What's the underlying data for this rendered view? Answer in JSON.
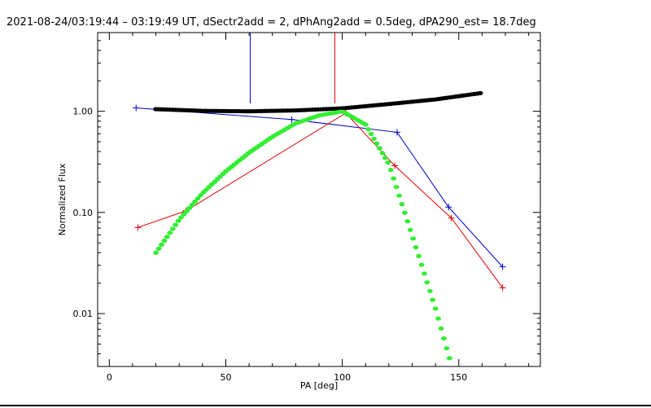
{
  "chart_data": {
    "type": "line",
    "title": "2021-08-24/03:19:44 – 03:19:49 UT, dSectr2add = 2, dPhAng2add = 0.5deg, dPA290_est= 18.7deg",
    "xlabel": "PA [deg]",
    "ylabel": "Normalized Flux",
    "xlim": [
      -5,
      185
    ],
    "ylim": [
      0.003,
      6.0
    ],
    "yscale": "log",
    "xticks": [
      {
        "value": 0,
        "label": "0"
      },
      {
        "value": 50,
        "label": "50"
      },
      {
        "value": 100,
        "label": "100"
      },
      {
        "value": 150,
        "label": "150"
      }
    ],
    "yticks": [
      {
        "value": 0.01,
        "label": "0.01"
      },
      {
        "value": 0.1,
        "label": "0.10"
      },
      {
        "value": 1.0,
        "label": "1.00"
      }
    ],
    "grid": false,
    "series": [
      {
        "color": "#0000cc",
        "style": "line-plus",
        "x": [
          11.5,
          78.3,
          123.5,
          145.6,
          168.8
        ],
        "y": [
          1.08,
          0.83,
          0.62,
          0.113,
          0.029
        ]
      },
      {
        "color": "#dd0000",
        "style": "line-plus",
        "x": [
          12.3,
          33.0,
          101.5,
          122.5,
          146.8,
          168.8
        ],
        "y": [
          0.071,
          0.104,
          0.96,
          0.29,
          0.088,
          0.018
        ]
      },
      {
        "color": "#000000",
        "style": "thick-dots",
        "x": [
          20,
          40,
          60,
          80,
          100,
          120,
          140,
          160
        ],
        "y": [
          1.05,
          1.01,
          1.0,
          1.02,
          1.07,
          1.18,
          1.31,
          1.52
        ]
      },
      {
        "color": "#33ee33",
        "style": "thick-dots",
        "x": [
          20,
          30,
          40,
          50,
          60,
          70,
          80,
          90,
          100,
          110,
          120,
          130,
          140,
          147
        ],
        "y": [
          0.04,
          0.085,
          0.155,
          0.255,
          0.39,
          0.56,
          0.76,
          0.91,
          1.0,
          0.74,
          0.3,
          0.059,
          0.0112,
          0.003
        ]
      }
    ],
    "vlines": [
      {
        "color": "#0000cc",
        "x": 60.5,
        "y_from": 1.2,
        "y_top": 6.0
      },
      {
        "color": "#dd0000",
        "x": 96.8,
        "y_from": 1.2,
        "y_top": 6.0
      }
    ]
  }
}
